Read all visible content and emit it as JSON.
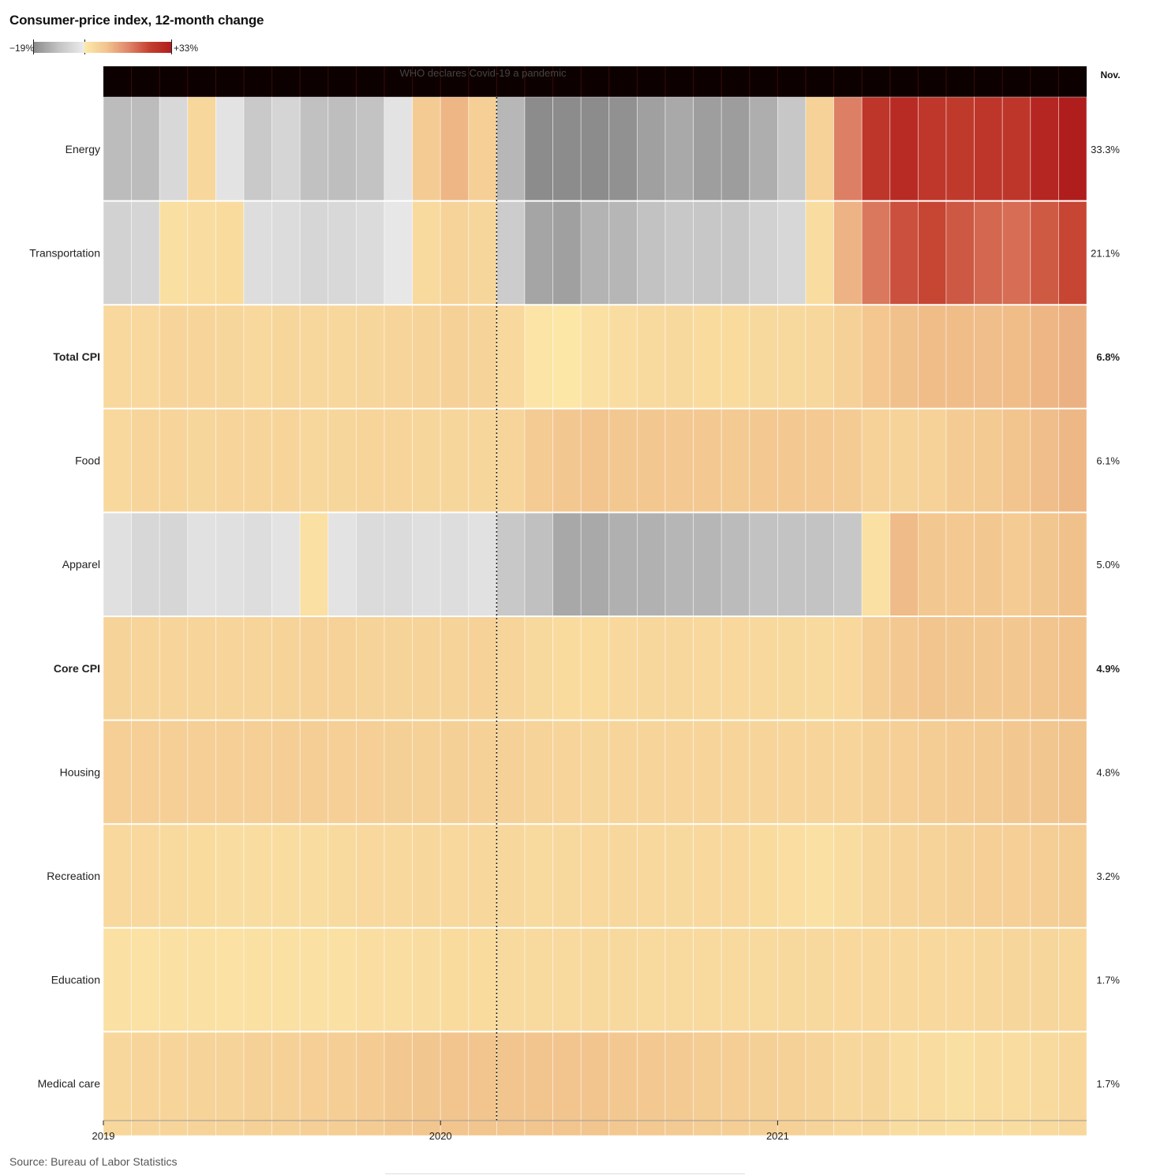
{
  "title": "Consumer-price index, 12-month change",
  "legend": {
    "min_label": "−19%",
    "max_label": "+33%"
  },
  "source": "Source: Bureau of Labor Statistics",
  "chart_data": {
    "type": "heatmap",
    "title": "Consumer-price index, 12-month change",
    "value_unit": "% (12-month change)",
    "color_scale": {
      "min": -19,
      "max": 33,
      "negative_colors": [
        "#8c8c8c",
        "#ececec"
      ],
      "positive_colors": [
        "#fde9a9",
        "#f2c58e",
        "#e0876a",
        "#c4402f",
        "#b01d1d"
      ]
    },
    "columns": [
      "2019-01",
      "2019-02",
      "2019-03",
      "2019-04",
      "2019-05",
      "2019-06",
      "2019-07",
      "2019-08",
      "2019-09",
      "2019-10",
      "2019-11",
      "2019-12",
      "2020-01",
      "2020-02",
      "2020-03",
      "2020-04",
      "2020-05",
      "2020-06",
      "2020-07",
      "2020-08",
      "2020-09",
      "2020-10",
      "2020-11",
      "2020-12",
      "2021-01",
      "2021-02",
      "2021-03",
      "2021-04",
      "2021-05",
      "2021-06",
      "2021-07",
      "2021-08",
      "2021-09",
      "2021-10",
      "2021-11"
    ],
    "x_tick_labels": [
      {
        "label": "2019",
        "column": 0
      },
      {
        "label": "2020",
        "column": 12
      },
      {
        "label": "2021",
        "column": 24
      }
    ],
    "last_column_header": "Nov.",
    "annotation": {
      "text": "WHO declares Covid-19 a pandemic",
      "position": 14
    },
    "rows": [
      {
        "name": "Energy",
        "latest_label": "33.3%",
        "bold": false,
        "values": [
          -5.0,
          -5.0,
          -1.7,
          1.7,
          -0.6,
          -3.4,
          -2.0,
          -4.4,
          -4.8,
          -4.2,
          -0.6,
          3.4,
          6.2,
          2.8,
          -5.7,
          -17.7,
          -18.9,
          -12.6,
          -11.2,
          -9.0,
          -7.7,
          -9.2,
          -9.4,
          -7.0,
          -3.6,
          2.4,
          13.2,
          25.1,
          28.5,
          24.5,
          23.8,
          25.0,
          24.8,
          30.0,
          33.3
        ]
      },
      {
        "name": "Transportation",
        "latest_label": "21.1%",
        "bold": false,
        "values": [
          -2.3,
          -2.0,
          0.7,
          1.1,
          1.2,
          -1.2,
          -1.3,
          -1.9,
          -1.7,
          -1.4,
          -0.3,
          1.3,
          2.2,
          1.8,
          -3.0,
          -8.2,
          -9.0,
          -6.3,
          -5.8,
          -4.3,
          -3.5,
          -3.7,
          -3.6,
          -2.5,
          -1.8,
          0.9,
          6.5,
          14.2,
          19.5,
          21.1,
          18.5,
          16.4,
          15.6,
          18.2,
          21.1
        ]
      },
      {
        "name": "Total CPI",
        "latest_label": "6.8%",
        "bold": true,
        "values": [
          1.6,
          1.5,
          1.9,
          2.0,
          1.8,
          1.6,
          1.8,
          1.7,
          1.7,
          1.8,
          2.1,
          2.3,
          2.5,
          2.3,
          1.5,
          0.3,
          0.1,
          0.6,
          1.0,
          1.3,
          1.4,
          1.2,
          1.2,
          1.4,
          1.4,
          1.7,
          2.6,
          4.2,
          5.0,
          5.4,
          5.4,
          5.3,
          5.4,
          6.2,
          6.8
        ]
      },
      {
        "name": "Food",
        "latest_label": "6.1%",
        "bold": false,
        "values": [
          1.6,
          2.0,
          2.1,
          1.8,
          2.0,
          1.9,
          1.9,
          1.7,
          1.8,
          2.1,
          2.0,
          1.8,
          1.8,
          1.8,
          1.9,
          3.5,
          4.0,
          4.5,
          4.1,
          4.1,
          3.9,
          3.9,
          3.7,
          3.9,
          3.8,
          3.6,
          3.5,
          2.4,
          2.2,
          2.4,
          3.4,
          3.7,
          4.6,
          5.3,
          6.1
        ]
      },
      {
        "name": "Apparel",
        "latest_label": "5.0%",
        "bold": false,
        "values": [
          -0.9,
          -1.8,
          -1.9,
          -0.8,
          -0.9,
          -1.2,
          -0.6,
          0.6,
          -0.6,
          -1.4,
          -1.4,
          -1.0,
          -1.2,
          -0.8,
          -3.5,
          -4.5,
          -7.8,
          -7.6,
          -6.6,
          -6.5,
          -5.9,
          -5.9,
          -5.2,
          -4.3,
          -4.1,
          -4.1,
          -3.6,
          0.6,
          5.6,
          4.0,
          3.9,
          4.0,
          3.5,
          4.3,
          5.0
        ]
      },
      {
        "name": "Core CPI",
        "latest_label": "4.9%",
        "bold": true,
        "values": [
          2.2,
          2.1,
          2.0,
          2.1,
          2.0,
          2.1,
          2.2,
          2.4,
          2.4,
          2.3,
          2.3,
          2.3,
          2.3,
          2.4,
          2.1,
          1.4,
          1.2,
          1.2,
          1.6,
          1.7,
          1.7,
          1.6,
          1.6,
          1.6,
          1.4,
          1.3,
          1.6,
          3.0,
          3.8,
          4.5,
          4.3,
          4.0,
          4.0,
          4.6,
          4.9
        ]
      },
      {
        "name": "Housing",
        "latest_label": "4.8%",
        "bold": false,
        "values": [
          2.9,
          2.8,
          2.8,
          2.8,
          2.8,
          2.9,
          3.0,
          3.0,
          2.9,
          2.8,
          2.7,
          2.6,
          2.7,
          2.6,
          2.6,
          2.2,
          2.0,
          1.8,
          1.9,
          2.0,
          2.1,
          2.0,
          1.9,
          1.9,
          1.9,
          1.9,
          2.1,
          2.6,
          2.8,
          3.2,
          3.5,
          3.7,
          4.0,
          4.3,
          4.8
        ]
      },
      {
        "name": "Recreation",
        "latest_label": "3.2%",
        "bold": false,
        "values": [
          1.6,
          1.5,
          1.3,
          1.2,
          1.0,
          1.0,
          0.9,
          1.1,
          1.3,
          1.5,
          1.6,
          1.7,
          1.5,
          1.7,
          1.7,
          1.3,
          1.4,
          1.5,
          1.7,
          1.6,
          1.4,
          1.5,
          1.5,
          1.2,
          0.8,
          0.6,
          1.0,
          1.7,
          2.0,
          2.2,
          2.6,
          2.8,
          2.8,
          3.0,
          3.2
        ]
      },
      {
        "name": "Education",
        "latest_label": "1.7%",
        "bold": false,
        "values": [
          0.6,
          0.5,
          0.6,
          0.6,
          0.5,
          0.6,
          0.6,
          0.6,
          0.6,
          0.8,
          0.8,
          1.0,
          1.2,
          1.2,
          1.3,
          1.3,
          1.3,
          1.4,
          1.4,
          1.3,
          1.3,
          1.3,
          1.3,
          1.3,
          1.4,
          1.4,
          1.5,
          1.6,
          1.6,
          1.6,
          1.6,
          1.7,
          1.8,
          1.8,
          1.7
        ]
      },
      {
        "name": "Medical care",
        "latest_label": "1.7%",
        "bold": false,
        "values": [
          1.7,
          2.0,
          1.9,
          2.2,
          2.3,
          2.6,
          2.6,
          2.8,
          3.0,
          3.4,
          4.0,
          4.4,
          4.5,
          4.6,
          4.5,
          4.6,
          4.6,
          4.5,
          4.1,
          3.9,
          3.7,
          3.2,
          3.0,
          2.7,
          2.5,
          2.3,
          1.7,
          1.8,
          1.0,
          0.9,
          0.7,
          0.9,
          1.0,
          1.3,
          1.7
        ]
      }
    ]
  }
}
